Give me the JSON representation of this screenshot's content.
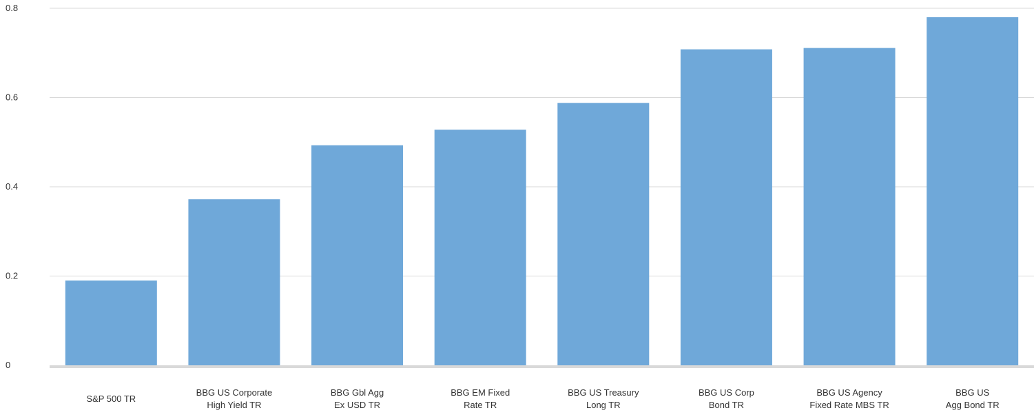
{
  "chart_data": {
    "type": "bar",
    "categories": [
      [
        "S&P 500 TR"
      ],
      [
        "BBG US Corporate",
        "High Yield TR"
      ],
      [
        "BBG Gbl Agg",
        "Ex USD TR"
      ],
      [
        "BBG EM Fixed",
        "Rate TR"
      ],
      [
        "BBG US Treasury",
        "Long TR"
      ],
      [
        "BBG US Corp",
        "Bond TR"
      ],
      [
        "BBG US Agency",
        "Fixed Rate MBS TR"
      ],
      [
        "BBG US",
        "Agg Bond TR"
      ]
    ],
    "values": [
      0.19,
      0.372,
      0.493,
      0.528,
      0.588,
      0.708,
      0.711,
      0.78
    ],
    "ylim": [
      0,
      0.8
    ],
    "yticks": [
      "0",
      "0.2",
      "0.4",
      "0.6",
      "0.8"
    ],
    "grid": true,
    "bar_color": "#6fa8d9",
    "grid_color": "#d9d9d9",
    "axis_color": "#d9d9d9"
  }
}
